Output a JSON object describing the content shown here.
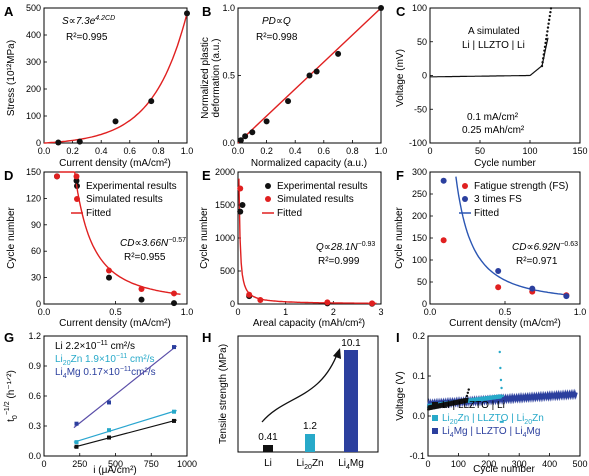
{
  "colors": {
    "red": "#e02020",
    "black": "#111111",
    "blue": "#2b3f9e",
    "cyan": "#27a9c9",
    "fit_red": "#e02020",
    "fit_blue": "#2b56b3",
    "fit_cyan": "#2aa6d0",
    "fit_dark": "#111111",
    "violet": "#5a4ea8"
  },
  "panels": {
    "A": {
      "label": "A",
      "ylabel": "Stress (10¹²MPa)",
      "xlabel": "Current density (mA/cm²)",
      "eq": "S∝7.3e",
      "eq_exp": "4.2CD",
      "r2": "R²=0.995"
    },
    "B": {
      "label": "B",
      "ylabel1": "Normalized plastic",
      "ylabel2": "deformation (a.u.)",
      "xlabel": "Normalized capacity (a.u.)",
      "eq": "PD∝Q",
      "r2": "R²=0.998"
    },
    "C": {
      "label": "C",
      "ylabel": "Voltage (mV)",
      "xlabel": "Cycle number",
      "ann1": "A simulated",
      "ann2": "Li | LLZTO | Li",
      "ann3": "0.1 mA/cm²",
      "ann4": "0.25 mAh/cm²"
    },
    "D": {
      "label": "D",
      "ylabel": "Cycle number",
      "xlabel": "Current density (mA/cm²)",
      "leg1": "Experimental results",
      "leg2": "Simulated results",
      "leg3": "Fitted",
      "eq": "CD∝3.66N",
      "eq_exp": "−0.57",
      "r2": "R²=0.955"
    },
    "E": {
      "label": "E",
      "ylabel": "Cycle number",
      "xlabel": "Areal capacity (mAh/cm²)",
      "leg1": "Experimental results",
      "leg2": "Simulated results",
      "leg3": "Fitted",
      "eq": "Q∝28.1N",
      "eq_exp": "−0.93",
      "r2": "R²=0.999"
    },
    "F": {
      "label": "F",
      "ylabel": "Cycle number",
      "xlabel": "Current density (mA/cm²)",
      "leg1": "Fatigue strength (FS)",
      "leg2": "3 times FS",
      "leg3": "Fitted",
      "eq": "CD∝6.92N",
      "eq_exp": "−0.63",
      "r2": "R²=0.971"
    },
    "G": {
      "label": "G",
      "ylabel": "t",
      "ylabel_sub": "0",
      "ylabel_sup": "−1/2",
      "ylabel_unit": " (h⁻¹ᐟ²)",
      "xlabel": "i (μA/cm²)",
      "leg1_a": "Li 2.2×10",
      "leg1_b": "−11",
      "leg1_c": " cm²/s",
      "leg2_a": "Li",
      "leg2_sub": "20",
      "leg2_b": "Zn 1.9×10",
      "leg2_c": "−11",
      "leg2_d": " cm²/s",
      "leg3_a": "Li",
      "leg3_sub": "4",
      "leg3_b": "Mg 0.17×10",
      "leg3_c": "−11",
      "leg3_d": "cm²/s"
    },
    "H": {
      "label": "H",
      "ylabel": "Tensile strength (MPa)",
      "cat1": "Li",
      "cat2_a": "Li",
      "cat2_sub": "20",
      "cat2_b": "Zn",
      "cat3_a": "Li",
      "cat3_sub": "4",
      "cat3_b": "Mg",
      "v1": "0.41",
      "v2": "1.2",
      "v3": "10.1"
    },
    "I": {
      "label": "I",
      "ylabel": "Voltage (V)",
      "xlabel": "Cycle number",
      "leg1": "Li | LLZTO | Li",
      "leg2_a": "Li",
      "leg2_sub1": "20",
      "leg2_b": "Zn | LLZTO | Li",
      "leg2_sub2": "20",
      "leg2_c": "Zn",
      "leg3_a": "Li",
      "leg3_sub1": "4",
      "leg3_b": "Mg | LLZTO | Li",
      "leg3_sub2": "4",
      "leg3_c": "Mg"
    }
  },
  "chart_data": [
    {
      "panel": "A",
      "type": "scatter",
      "x": [
        0.1,
        0.25,
        0.5,
        0.75,
        1.0
      ],
      "y": [
        2,
        5,
        80,
        155,
        480
      ],
      "fit": "exponential",
      "xlim": [
        0.0,
        1.0
      ],
      "ylim": [
        0,
        500
      ],
      "xticks": [
        "0.0",
        "0.2",
        "0.4",
        "0.6",
        "0.8",
        "1.0"
      ],
      "yticks": [
        "0",
        "100",
        "200",
        "300",
        "400",
        "500"
      ]
    },
    {
      "panel": "B",
      "type": "scatter",
      "x": [
        0.02,
        0.05,
        0.1,
        0.2,
        0.35,
        0.5,
        0.55,
        0.7,
        1.0
      ],
      "y": [
        0.02,
        0.05,
        0.08,
        0.16,
        0.31,
        0.5,
        0.53,
        0.66,
        1.0
      ],
      "fit": "linear",
      "xlim": [
        0.0,
        1.0
      ],
      "ylim": [
        0.0,
        1.0
      ],
      "xticks": [
        "0.0",
        "0.2",
        "0.4",
        "0.6",
        "0.8",
        "1.0"
      ],
      "yticks": [
        "0.0",
        "0.5",
        "1.0"
      ]
    },
    {
      "panel": "C",
      "type": "line",
      "xlim": [
        0,
        150
      ],
      "ylim": [
        -100,
        100
      ],
      "xticks": [
        "0",
        "50",
        "100",
        "150"
      ],
      "yticks": [
        "-100",
        "-50",
        "0",
        "50",
        "100"
      ]
    },
    {
      "panel": "D",
      "type": "scatter",
      "series": [
        {
          "name": "Experimental results",
          "x": [
            0.1,
            0.25,
            0.5,
            0.75,
            1.0
          ],
          "y": [
            145,
            140,
            30,
            5,
            1
          ]
        },
        {
          "name": "Simulated results",
          "x": [
            0.1,
            0.25,
            0.5,
            0.75,
            1.0
          ],
          "y": [
            145,
            145,
            38,
            17,
            12
          ]
        }
      ],
      "fit": "power",
      "xlim": [
        0.0,
        1.1
      ],
      "ylim": [
        0,
        150
      ],
      "xticks": [
        "0.0",
        "0.5",
        "1.0"
      ],
      "yticks": [
        "0",
        "30",
        "60",
        "90",
        "120",
        "150"
      ]
    },
    {
      "panel": "E",
      "type": "scatter",
      "series": [
        {
          "name": "Experimental results",
          "x": [
            0.05,
            0.1,
            0.25,
            2.0,
            3.0
          ],
          "y": [
            1400,
            1500,
            120,
            10,
            3
          ]
        },
        {
          "name": "Simulated results",
          "x": [
            0.05,
            0.25,
            0.5,
            2.0,
            3.0
          ],
          "y": [
            1750,
            140,
            60,
            25,
            10
          ]
        }
      ],
      "fit": "power",
      "xlim": [
        0,
        3.2
      ],
      "ylim": [
        0,
        2000
      ],
      "xticks": [
        "0",
        "1",
        "2",
        "3"
      ],
      "yticks": [
        "0",
        "500",
        "1000",
        "1500",
        "2000"
      ]
    },
    {
      "panel": "F",
      "type": "scatter",
      "series": [
        {
          "name": "Fatigue strength (FS)",
          "x": [
            0.1,
            0.5,
            0.75,
            1.0
          ],
          "y": [
            145,
            38,
            28,
            20
          ]
        },
        {
          "name": "3 times FS",
          "x": [
            0.1,
            0.5,
            0.75,
            1.0
          ],
          "y": [
            280,
            75,
            35,
            18
          ]
        }
      ],
      "fit": "power",
      "xlim": [
        0.0,
        1.1
      ],
      "ylim": [
        0,
        300
      ],
      "xticks": [
        "0.0",
        "0.5",
        "1.0"
      ],
      "yticks": [
        "0",
        "50",
        "100",
        "150",
        "200",
        "250",
        "300"
      ]
    },
    {
      "panel": "G",
      "type": "scatter",
      "series": [
        {
          "name": "Li",
          "x": [
            250,
            500,
            1000
          ],
          "y": [
            0.1,
            0.2,
            0.38
          ]
        },
        {
          "name": "Li20Zn",
          "x": [
            250,
            500,
            1000
          ],
          "y": [
            0.15,
            0.28,
            0.48
          ]
        },
        {
          "name": "Li4Mg",
          "x": [
            250,
            500,
            1000
          ],
          "y": [
            0.35,
            0.58,
            1.18
          ]
        }
      ],
      "fit": "linear",
      "xlim": [
        0,
        1100
      ],
      "ylim": [
        0.0,
        1.3
      ],
      "xticks": [
        "0",
        "250",
        "500",
        "750",
        "1000"
      ],
      "yticks": [
        "0.0",
        "0.3",
        "0.6",
        "0.9",
        "1.2"
      ]
    },
    {
      "panel": "H",
      "type": "bar",
      "categories": [
        "Li",
        "Li20Zn",
        "Li4Mg"
      ],
      "values": [
        0.41,
        1.2,
        10.1
      ]
    },
    {
      "panel": "I",
      "type": "line",
      "xlim": [
        0,
        500
      ],
      "ylim": [
        -0.1,
        0.2
      ],
      "xticks": [
        "0",
        "100",
        "200",
        "300",
        "400",
        "500"
      ],
      "yticks": [
        "-0.1",
        "0.0",
        "0.1",
        "0.2"
      ]
    }
  ]
}
